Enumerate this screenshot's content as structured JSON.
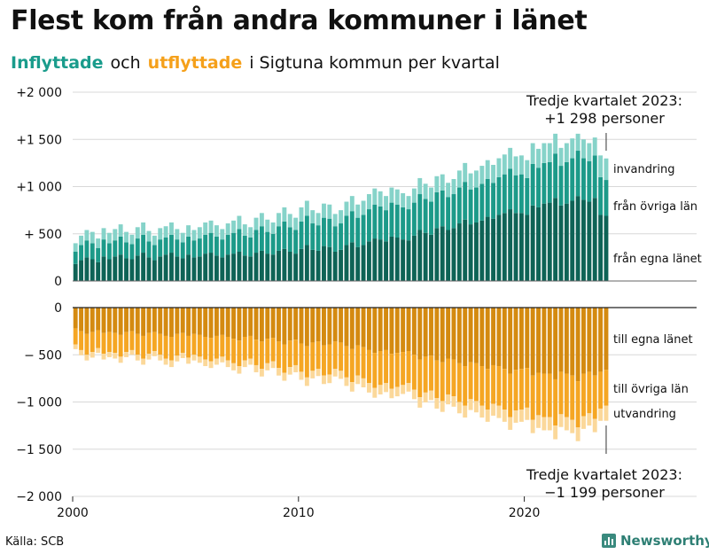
{
  "title": "Flest kom från andra kommuner i länet",
  "subtitle": {
    "in_label": "Inflyttade",
    "and": "och",
    "out_label": "utflyttade",
    "rest": "i Sigtuna kommun per kvartal"
  },
  "source": "Källa: SCB",
  "logo": {
    "name": "Newsworthy"
  },
  "colors": {
    "egna_in": "#0e6356",
    "ovriga_in": "#1c9a89",
    "invandring": "#86d3c9",
    "egna_out": "#d48a10",
    "ovriga_out": "#f5a623",
    "utvandring": "#fbd89a",
    "grid": "#d8d8d8",
    "axis": "#222222"
  },
  "chart_data": {
    "type": "bar",
    "stacked": true,
    "x_start": 2000,
    "quarters_per_year": 4,
    "n_quarters": 95,
    "xticks": [
      2000,
      2010,
      2020
    ],
    "upper": {
      "ylim": [
        0,
        2000
      ],
      "ticks": [
        0,
        500,
        1000,
        1500,
        2000
      ],
      "tick_labels": [
        "0",
        "+  500",
        "+1 000",
        "+1 500",
        "+2 000"
      ]
    },
    "lower": {
      "ylim": [
        -2000,
        0
      ],
      "ticks": [
        0,
        -500,
        -1000,
        -1500,
        -2000
      ],
      "tick_labels": [
        "0",
        "−  500",
        "−1 000",
        "−1 500",
        "−2 000"
      ]
    },
    "series": [
      {
        "name": "från egna länet",
        "key": "egna_in",
        "values": [
          180,
          220,
          250,
          230,
          200,
          260,
          230,
          260,
          280,
          240,
          230,
          270,
          300,
          250,
          220,
          260,
          280,
          300,
          260,
          240,
          280,
          250,
          260,
          290,
          300,
          270,
          250,
          280,
          290,
          310,
          270,
          260,
          300,
          320,
          290,
          280,
          320,
          340,
          310,
          290,
          340,
          380,
          330,
          320,
          370,
          360,
          310,
          330,
          380,
          410,
          360,
          380,
          420,
          450,
          440,
          420,
          470,
          460,
          440,
          430,
          480,
          540,
          510,
          490,
          560,
          580,
          540,
          560,
          610,
          650,
          600,
          620,
          640,
          680,
          660,
          700,
          720,
          760,
          720,
          720,
          700,
          800,
          780,
          820,
          830,
          880,
          800,
          820,
          850,
          900,
          860,
          840,
          880,
          700,
          690
        ]
      },
      {
        "name": "från övriga län",
        "key": "ovriga_in",
        "values": [
          130,
          160,
          180,
          170,
          150,
          180,
          170,
          170,
          190,
          170,
          160,
          180,
          190,
          170,
          160,
          180,
          180,
          190,
          180,
          170,
          190,
          180,
          190,
          200,
          210,
          200,
          190,
          210,
          220,
          240,
          210,
          200,
          240,
          260,
          230,
          220,
          260,
          290,
          260,
          250,
          290,
          310,
          280,
          270,
          300,
          300,
          270,
          280,
          310,
          330,
          310,
          320,
          340,
          360,
          350,
          330,
          360,
          350,
          340,
          330,
          350,
          380,
          360,
          350,
          380,
          380,
          350,
          360,
          380,
          400,
          370,
          370,
          390,
          400,
          380,
          400,
          410,
          430,
          400,
          410,
          390,
          440,
          420,
          430,
          430,
          470,
          420,
          440,
          450,
          480,
          440,
          430,
          450,
          400,
          380
        ]
      },
      {
        "name": "invandring",
        "key": "invandring",
        "values": [
          90,
          100,
          110,
          120,
          100,
          120,
          110,
          120,
          130,
          110,
          100,
          120,
          130,
          110,
          100,
          120,
          120,
          130,
          110,
          100,
          120,
          110,
          120,
          130,
          130,
          120,
          110,
          120,
          130,
          140,
          120,
          110,
          130,
          140,
          130,
          120,
          140,
          150,
          140,
          130,
          150,
          160,
          140,
          130,
          150,
          150,
          130,
          140,
          150,
          160,
          140,
          150,
          160,
          170,
          160,
          150,
          160,
          160,
          150,
          140,
          150,
          170,
          160,
          150,
          170,
          170,
          150,
          160,
          180,
          200,
          170,
          180,
          190,
          200,
          190,
          200,
          210,
          220,
          200,
          200,
          190,
          220,
          200,
          210,
          200,
          210,
          190,
          200,
          210,
          180,
          200,
          190,
          190,
          230,
          228
        ]
      },
      {
        "name": "till egna länet",
        "key": "egna_out",
        "values": [
          -220,
          -250,
          -280,
          -260,
          -240,
          -270,
          -260,
          -270,
          -290,
          -260,
          -250,
          -280,
          -300,
          -270,
          -260,
          -280,
          -300,
          -310,
          -280,
          -270,
          -300,
          -280,
          -290,
          -310,
          -320,
          -300,
          -290,
          -310,
          -330,
          -350,
          -310,
          -300,
          -340,
          -360,
          -330,
          -320,
          -360,
          -390,
          -350,
          -340,
          -380,
          -410,
          -370,
          -360,
          -400,
          -390,
          -360,
          -370,
          -410,
          -440,
          -400,
          -420,
          -450,
          -480,
          -460,
          -450,
          -490,
          -480,
          -470,
          -460,
          -500,
          -550,
          -520,
          -510,
          -560,
          -580,
          -540,
          -550,
          -590,
          -620,
          -580,
          -590,
          -620,
          -650,
          -610,
          -620,
          -650,
          -700,
          -660,
          -650,
          -640,
          -720,
          -690,
          -700,
          -700,
          -760,
          -680,
          -700,
          -720,
          -780,
          -700,
          -680,
          -720,
          -680,
          -660
        ]
      },
      {
        "name": "till övriga län",
        "key": "ovriga_out",
        "values": [
          -170,
          -200,
          -220,
          -210,
          -190,
          -220,
          -210,
          -210,
          -230,
          -210,
          -200,
          -220,
          -240,
          -220,
          -200,
          -220,
          -240,
          -250,
          -230,
          -210,
          -230,
          -220,
          -230,
          -240,
          -250,
          -240,
          -230,
          -250,
          -260,
          -270,
          -250,
          -240,
          -270,
          -290,
          -260,
          -250,
          -280,
          -300,
          -280,
          -270,
          -300,
          -330,
          -300,
          -290,
          -320,
          -320,
          -290,
          -300,
          -330,
          -350,
          -320,
          -330,
          -350,
          -370,
          -360,
          -350,
          -370,
          -360,
          -350,
          -340,
          -370,
          -400,
          -380,
          -370,
          -400,
          -410,
          -380,
          -390,
          -410,
          -420,
          -390,
          -400,
          -420,
          -430,
          -410,
          -420,
          -430,
          -460,
          -430,
          -430,
          -420,
          -470,
          -450,
          -460,
          -460,
          -490,
          -450,
          -460,
          -470,
          -490,
          -450,
          -440,
          -460,
          -390,
          -380
        ]
      },
      {
        "name": "utvandring",
        "key": "utvandring",
        "values": [
          -50,
          -55,
          -60,
          -60,
          -50,
          -60,
          -55,
          -60,
          -65,
          -55,
          -50,
          -60,
          -65,
          -60,
          -55,
          -60,
          -65,
          -70,
          -60,
          -55,
          -65,
          -60,
          -65,
          -70,
          -70,
          -65,
          -60,
          -70,
          -75,
          -80,
          -70,
          -65,
          -75,
          -80,
          -75,
          -70,
          -80,
          -85,
          -80,
          -75,
          -85,
          -90,
          -80,
          -75,
          -90,
          -90,
          -80,
          -85,
          -90,
          -100,
          -90,
          -95,
          -100,
          -105,
          -100,
          -95,
          -100,
          -100,
          -95,
          -90,
          -100,
          -110,
          -105,
          -100,
          -110,
          -115,
          -105,
          -110,
          -120,
          -125,
          -115,
          -120,
          -125,
          -130,
          -125,
          -130,
          -130,
          -135,
          -130,
          -130,
          -130,
          -140,
          -135,
          -140,
          -140,
          -145,
          -135,
          -140,
          -140,
          -145,
          -135,
          -130,
          -140,
          -130,
          -159
        ]
      }
    ],
    "labels_in": [
      "invandring",
      "från övriga län",
      "från egna länet"
    ],
    "labels_out": [
      "till egna länet",
      "till övriga län",
      "utvandring"
    ],
    "annotation_top": {
      "line1": "Tredje kvartalet 2023:",
      "line2": "+1 298 personer"
    },
    "annotation_bottom": {
      "line1": "Tredje kvartalet 2023:",
      "line2": "−1 199 personer"
    }
  }
}
